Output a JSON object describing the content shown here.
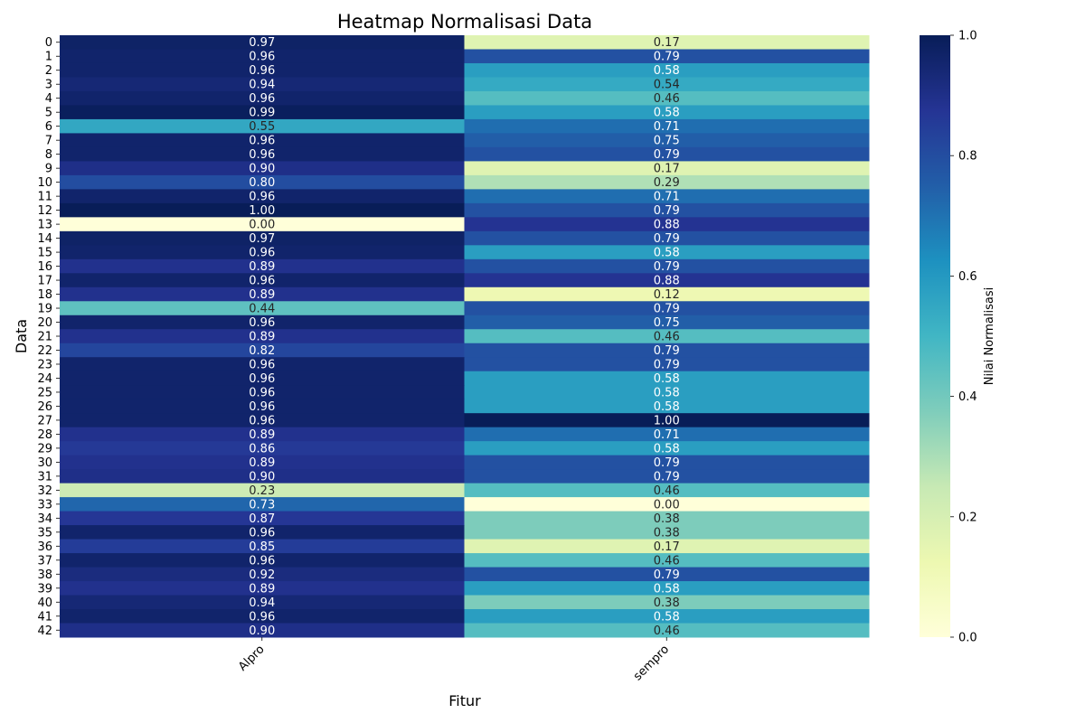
{
  "chart_data": {
    "type": "heatmap",
    "title": "Heatmap Normalisasi Data",
    "xlabel": "Fitur",
    "ylabel": "Data",
    "columns": [
      "Alpro",
      "sempro"
    ],
    "rows": [
      "0",
      "1",
      "2",
      "3",
      "4",
      "5",
      "6",
      "7",
      "8",
      "9",
      "10",
      "11",
      "12",
      "13",
      "14",
      "15",
      "16",
      "17",
      "18",
      "19",
      "20",
      "21",
      "22",
      "23",
      "24",
      "25",
      "26",
      "27",
      "28",
      "29",
      "30",
      "31",
      "32",
      "33",
      "34",
      "35",
      "36",
      "37",
      "38",
      "39",
      "40",
      "41",
      "42"
    ],
    "values": [
      [
        0.97,
        0.17
      ],
      [
        0.96,
        0.79
      ],
      [
        0.96,
        0.58
      ],
      [
        0.94,
        0.54
      ],
      [
        0.96,
        0.46
      ],
      [
        0.99,
        0.58
      ],
      [
        0.55,
        0.71
      ],
      [
        0.96,
        0.75
      ],
      [
        0.96,
        0.79
      ],
      [
        0.9,
        0.17
      ],
      [
        0.8,
        0.29
      ],
      [
        0.96,
        0.71
      ],
      [
        1.0,
        0.79
      ],
      [
        0.0,
        0.88
      ],
      [
        0.97,
        0.79
      ],
      [
        0.96,
        0.58
      ],
      [
        0.89,
        0.79
      ],
      [
        0.96,
        0.88
      ],
      [
        0.89,
        0.12
      ],
      [
        0.44,
        0.79
      ],
      [
        0.96,
        0.75
      ],
      [
        0.89,
        0.46
      ],
      [
        0.82,
        0.79
      ],
      [
        0.96,
        0.79
      ],
      [
        0.96,
        0.58
      ],
      [
        0.96,
        0.58
      ],
      [
        0.96,
        0.58
      ],
      [
        0.96,
        1.0
      ],
      [
        0.89,
        0.71
      ],
      [
        0.86,
        0.58
      ],
      [
        0.89,
        0.79
      ],
      [
        0.9,
        0.79
      ],
      [
        0.23,
        0.46
      ],
      [
        0.73,
        0.0
      ],
      [
        0.87,
        0.38
      ],
      [
        0.96,
        0.38
      ],
      [
        0.85,
        0.17
      ],
      [
        0.96,
        0.46
      ],
      [
        0.92,
        0.79
      ],
      [
        0.89,
        0.58
      ],
      [
        0.94,
        0.38
      ],
      [
        0.96,
        0.58
      ],
      [
        0.9,
        0.46
      ]
    ],
    "colormap": "YlGnBu",
    "vmin": 0.0,
    "vmax": 1.0,
    "colorbar": {
      "label": "Nilai Normalisasi",
      "ticks": [
        "0.0",
        "0.2",
        "0.4",
        "0.6",
        "0.8",
        "1.0"
      ]
    },
    "cmap_stops": [
      "#ffffd9",
      "#edf8b1",
      "#c7e9b4",
      "#7fcdbb",
      "#41b6c4",
      "#1d91c0",
      "#225ea8",
      "#253494",
      "#081d58"
    ]
  }
}
